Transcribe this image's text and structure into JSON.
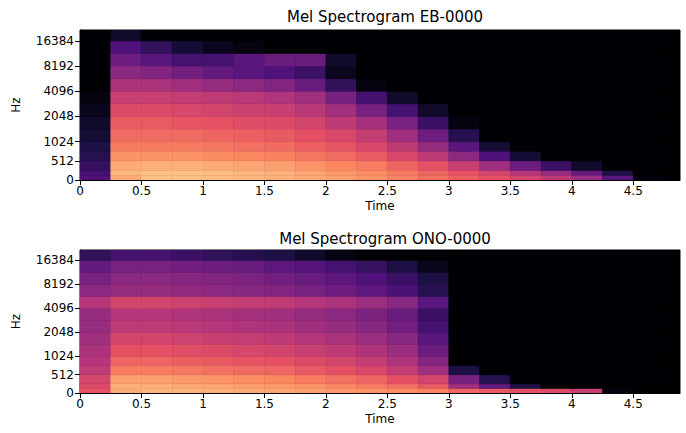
{
  "chart_data": [
    {
      "type": "heatmap",
      "title": "Mel Spectrogram EB-0000",
      "x_label": "Time",
      "y_label": "Hz",
      "xlim": [
        0,
        4.88
      ],
      "xticks": [
        0,
        0.5,
        1,
        1.5,
        2,
        2.5,
        3,
        3.5,
        4,
        4.5
      ],
      "ylim": [
        0,
        22050
      ],
      "yticks": [
        0,
        512,
        1024,
        2048,
        4096,
        8192,
        16384
      ],
      "zlim": [
        -80,
        0
      ],
      "time_bins": [
        0,
        0.25,
        0.5,
        0.75,
        1,
        1.25,
        1.5,
        1.75,
        2,
        2.25,
        2.5,
        2.75,
        3,
        3.25,
        3.5,
        3.75,
        4,
        4.25,
        4.5,
        4.75,
        5
      ],
      "freq_bins": [
        0,
        128,
        256,
        512,
        768,
        1024,
        1448,
        2048,
        2896,
        4096,
        5793,
        8192,
        11585,
        16384,
        22050
      ],
      "cells": [
        [
          -60,
          -14,
          -10,
          -10,
          -11,
          -12,
          -13,
          -14,
          -16,
          -18,
          -21,
          -24,
          -27,
          -30,
          -34,
          -38,
          -45,
          -58,
          -78,
          -80
        ],
        [
          -62,
          -12,
          -10,
          -10,
          -11,
          -12,
          -13,
          -15,
          -17,
          -19,
          -22,
          -26,
          -30,
          -34,
          -40,
          -46,
          -56,
          -70,
          -80,
          -80
        ],
        [
          -65,
          -14,
          -13,
          -13,
          -14,
          -15,
          -16,
          -18,
          -20,
          -22,
          -26,
          -30,
          -36,
          -44,
          -54,
          -64,
          -74,
          -80,
          -80,
          -80
        ],
        [
          -68,
          -18,
          -18,
          -18,
          -19,
          -20,
          -21,
          -23,
          -25,
          -28,
          -33,
          -38,
          -48,
          -60,
          -72,
          -80,
          -80,
          -80,
          -80,
          -80
        ],
        [
          -70,
          -22,
          -22,
          -22,
          -23,
          -24,
          -25,
          -27,
          -29,
          -33,
          -38,
          -46,
          -58,
          -72,
          -80,
          -80,
          -80,
          -80,
          -80,
          -80
        ],
        [
          -72,
          -25,
          -25,
          -25,
          -26,
          -27,
          -28,
          -30,
          -33,
          -37,
          -44,
          -54,
          -68,
          -80,
          -80,
          -80,
          -80,
          -80,
          -80,
          -80
        ],
        [
          -74,
          -28,
          -28,
          -29,
          -30,
          -31,
          -32,
          -34,
          -38,
          -43,
          -52,
          -64,
          -78,
          -80,
          -80,
          -80,
          -80,
          -80,
          -80,
          -80
        ],
        [
          -76,
          -32,
          -32,
          -33,
          -34,
          -35,
          -36,
          -39,
          -44,
          -52,
          -62,
          -74,
          -80,
          -80,
          -80,
          -80,
          -80,
          -80,
          -80,
          -80
        ],
        [
          -78,
          -36,
          -36,
          -37,
          -38,
          -39,
          -41,
          -44,
          -52,
          -62,
          -74,
          -80,
          -80,
          -80,
          -80,
          -80,
          -80,
          -80,
          -80,
          -80
        ],
        [
          -80,
          -42,
          -42,
          -44,
          -46,
          -48,
          -50,
          -55,
          -66,
          -78,
          -80,
          -80,
          -80,
          -80,
          -80,
          -80,
          -80,
          -80,
          -80,
          -80
        ],
        [
          -80,
          -48,
          -50,
          -53,
          -56,
          -58,
          -60,
          -64,
          -76,
          -80,
          -80,
          -80,
          -80,
          -80,
          -80,
          -80,
          -80,
          -80,
          -80,
          -80
        ],
        [
          -80,
          -54,
          -58,
          -62,
          -62,
          -58,
          -55,
          -55,
          -74,
          -80,
          -80,
          -80,
          -80,
          -80,
          -80,
          -80,
          -80,
          -80,
          -80,
          -80
        ],
        [
          -80,
          -60,
          -66,
          -72,
          -76,
          -78,
          -80,
          -80,
          -80,
          -80,
          -80,
          -80,
          -80,
          -80,
          -80,
          -80,
          -80,
          -80,
          -80,
          -80
        ],
        [
          -80,
          -74,
          -80,
          -80,
          -80,
          -80,
          -80,
          -80,
          -80,
          -80,
          -80,
          -80,
          -80,
          -80,
          -80,
          -80,
          -80,
          -80,
          -80,
          -80
        ]
      ]
    },
    {
      "type": "heatmap",
      "title": "Mel Spectrogram ONO-0000",
      "x_label": "Time",
      "y_label": "Hz",
      "xlim": [
        0,
        4.88
      ],
      "xticks": [
        0,
        0.5,
        1,
        1.5,
        2,
        2.5,
        3,
        3.5,
        4,
        4.5
      ],
      "ylim": [
        0,
        22050
      ],
      "yticks": [
        0,
        512,
        1024,
        2048,
        4096,
        8192,
        16384
      ],
      "zlim": [
        -80,
        0
      ],
      "time_bins": [
        0,
        0.25,
        0.5,
        0.75,
        1,
        1.25,
        1.5,
        1.75,
        2,
        2.25,
        2.5,
        2.75,
        3,
        3.25,
        3.5,
        3.75,
        4,
        4.25,
        4.5,
        4.75,
        5
      ],
      "freq_bins": [
        0,
        128,
        256,
        512,
        768,
        1024,
        1448,
        2048,
        2896,
        4096,
        5793,
        8192,
        11585,
        16384,
        22050
      ],
      "cells": [
        [
          -30,
          -14,
          -12,
          -12,
          -13,
          -14,
          -15,
          -16,
          -17,
          -18,
          -19,
          -21,
          -26,
          -28,
          -30,
          -32,
          -36,
          -78,
          -80,
          -80
        ],
        [
          -32,
          -13,
          -13,
          -14,
          -15,
          -16,
          -17,
          -18,
          -20,
          -22,
          -24,
          -28,
          -44,
          -56,
          -70,
          -80,
          -80,
          -80,
          -80,
          -80
        ],
        [
          -34,
          -16,
          -16,
          -17,
          -18,
          -19,
          -20,
          -22,
          -24,
          -26,
          -30,
          -34,
          -52,
          -68,
          -80,
          -80,
          -80,
          -80,
          -80,
          -80
        ],
        [
          -38,
          -22,
          -22,
          -23,
          -24,
          -25,
          -26,
          -28,
          -30,
          -33,
          -37,
          -44,
          -70,
          -80,
          -80,
          -80,
          -80,
          -80,
          -80,
          -80
        ],
        [
          -40,
          -26,
          -26,
          -27,
          -28,
          -29,
          -30,
          -32,
          -34,
          -37,
          -41,
          -50,
          -80,
          -80,
          -80,
          -80,
          -80,
          -80,
          -80,
          -80
        ],
        [
          -42,
          -30,
          -30,
          -31,
          -32,
          -33,
          -34,
          -36,
          -38,
          -41,
          -45,
          -54,
          -80,
          -80,
          -80,
          -80,
          -80,
          -80,
          -80,
          -80
        ],
        [
          -44,
          -34,
          -34,
          -35,
          -36,
          -37,
          -38,
          -40,
          -42,
          -45,
          -49,
          -58,
          -80,
          -80,
          -80,
          -80,
          -80,
          -80,
          -80,
          -80
        ],
        [
          -46,
          -38,
          -38,
          -39,
          -40,
          -41,
          -42,
          -44,
          -46,
          -49,
          -53,
          -62,
          -80,
          -80,
          -80,
          -80,
          -80,
          -80,
          -80,
          -80
        ],
        [
          -46,
          -40,
          -40,
          -41,
          -42,
          -43,
          -44,
          -46,
          -48,
          -51,
          -55,
          -64,
          -80,
          -80,
          -80,
          -80,
          -80,
          -80,
          -80,
          -80
        ],
        [
          -40,
          -34,
          -34,
          -35,
          -36,
          -37,
          -38,
          -40,
          -42,
          -45,
          -49,
          -58,
          -80,
          -80,
          -80,
          -80,
          -80,
          -80,
          -80,
          -80
        ],
        [
          -48,
          -46,
          -46,
          -47,
          -48,
          -49,
          -50,
          -52,
          -54,
          -57,
          -61,
          -68,
          -80,
          -80,
          -80,
          -80,
          -80,
          -80,
          -80,
          -80
        ],
        [
          -52,
          -48,
          -48,
          -49,
          -50,
          -51,
          -53,
          -55,
          -57,
          -60,
          -64,
          -70,
          -80,
          -80,
          -80,
          -80,
          -80,
          -80,
          -80,
          -80
        ],
        [
          -56,
          -52,
          -52,
          -53,
          -54,
          -55,
          -57,
          -59,
          -62,
          -65,
          -70,
          -76,
          -80,
          -80,
          -80,
          -80,
          -80,
          -80,
          -80,
          -80
        ],
        [
          -66,
          -62,
          -62,
          -64,
          -66,
          -68,
          -70,
          -74,
          -78,
          -80,
          -80,
          -80,
          -80,
          -80,
          -80,
          -80,
          -80,
          -80,
          -80,
          -80
        ]
      ]
    }
  ]
}
